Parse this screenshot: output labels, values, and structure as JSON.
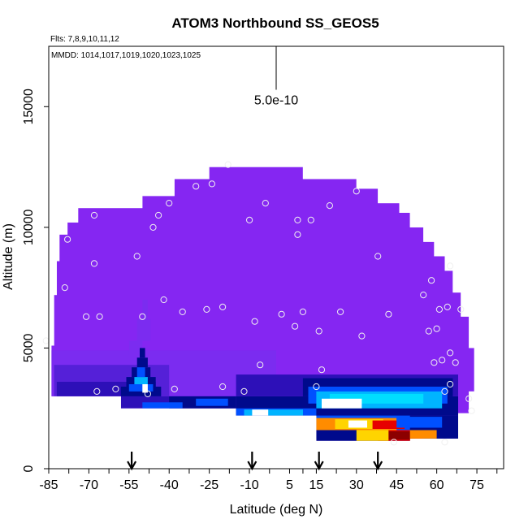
{
  "chart_data": {
    "type": "heatmap",
    "title": "ATOM3 Northbound SS_GEOS5",
    "flights_label": "Flts: 7,8,9,10,11,12",
    "dates_label": "MMDD: 1014,1017,1019,1020,1023,1025",
    "xlabel": "Latitude (deg N)",
    "ylabel": "Altitude (m)",
    "xlim": [
      -85,
      85
    ],
    "ylim": [
      0,
      17500
    ],
    "x_ticks": [
      -85,
      -70,
      -55,
      -40,
      -25,
      -10,
      5,
      15,
      30,
      45,
      60,
      75
    ],
    "y_ticks": [
      0,
      5000,
      10000,
      15000
    ],
    "grid": false,
    "scale_bar_label": "5.0e-10",
    "scale_bar": {
      "x": 0,
      "y_top": 17500,
      "y_bottom": 15700
    },
    "arrows_latitude": [
      -54,
      -9,
      16,
      38
    ],
    "colors": {
      "background_fill": "#8526f2",
      "low_1": "#7b2cf0",
      "low_2": "#5520d8",
      "low_3": "#2d10b8",
      "navy": "#000a8c",
      "blue": "#0050ff",
      "sky": "#00b4ff",
      "cyan": "#00dcff",
      "white": "#ffffff",
      "yellow": "#ffd400",
      "orange": "#ff8c00",
      "red": "#e60000",
      "darkred": "#8c0000"
    },
    "outline": [
      [
        -84,
        3000
      ],
      [
        -84,
        5100
      ],
      [
        -83,
        5100
      ],
      [
        -83,
        7200
      ],
      [
        -82,
        7200
      ],
      [
        -82,
        8600
      ],
      [
        -81,
        8600
      ],
      [
        -81,
        9700
      ],
      [
        -78,
        9700
      ],
      [
        -78,
        10200
      ],
      [
        -74,
        10200
      ],
      [
        -74,
        10800
      ],
      [
        -50,
        10800
      ],
      [
        -50,
        11300
      ],
      [
        -38,
        11300
      ],
      [
        -38,
        12000
      ],
      [
        -25,
        12000
      ],
      [
        -25,
        12500
      ],
      [
        10,
        12500
      ],
      [
        10,
        12000
      ],
      [
        30,
        12000
      ],
      [
        30,
        11600
      ],
      [
        38,
        11600
      ],
      [
        38,
        11000
      ],
      [
        46,
        11000
      ],
      [
        46,
        10600
      ],
      [
        50,
        10600
      ],
      [
        50,
        10000
      ],
      [
        55,
        10000
      ],
      [
        55,
        9400
      ],
      [
        59,
        9400
      ],
      [
        59,
        8800
      ],
      [
        63,
        8800
      ],
      [
        63,
        8200
      ],
      [
        66,
        8200
      ],
      [
        66,
        7300
      ],
      [
        69,
        7300
      ],
      [
        69,
        6300
      ],
      [
        72,
        6300
      ],
      [
        72,
        5000
      ],
      [
        74,
        5000
      ],
      [
        74,
        3200
      ],
      [
        72,
        3200
      ],
      [
        72,
        2300
      ],
      [
        68,
        2300
      ],
      [
        68,
        1250
      ],
      [
        50,
        1250
      ],
      [
        50,
        1150
      ],
      [
        15,
        1150
      ],
      [
        15,
        2200
      ],
      [
        -15,
        2200
      ],
      [
        -15,
        2500
      ],
      [
        -58,
        2500
      ],
      [
        -58,
        3000
      ]
    ],
    "patches": [
      {
        "x": [
          -84,
          0
        ],
        "y": [
          3000,
          4900
        ],
        "color": "low_1"
      },
      {
        "x": [
          -83,
          -40
        ],
        "y": [
          3000,
          4300
        ],
        "color": "low_2"
      },
      {
        "x": [
          -82,
          -45
        ],
        "y": [
          3000,
          3600
        ],
        "color": "low_3"
      },
      {
        "x": [
          -15,
          68
        ],
        "y": [
          3000,
          3900
        ],
        "color": "low_3"
      },
      {
        "x": [
          -55,
          -50
        ],
        "y": [
          4700,
          5300
        ],
        "color": "low_1"
      },
      {
        "x": [
          -52,
          -47
        ],
        "y": [
          5300,
          6200
        ],
        "color": "low_1"
      },
      {
        "x": [
          -50,
          -48
        ],
        "y": [
          6200,
          7000
        ],
        "color": "low_1"
      },
      {
        "x": [
          -58,
          -43
        ],
        "y": [
          3000,
          3400
        ],
        "color": "navy"
      },
      {
        "x": [
          -56,
          -45
        ],
        "y": [
          3400,
          3800
        ],
        "color": "navy"
      },
      {
        "x": [
          -54,
          -47
        ],
        "y": [
          3800,
          4200
        ],
        "color": "navy"
      },
      {
        "x": [
          -52,
          -48
        ],
        "y": [
          4200,
          4600
        ],
        "color": "navy"
      },
      {
        "x": [
          -51,
          -49
        ],
        "y": [
          4600,
          5000
        ],
        "color": "navy"
      },
      {
        "x": [
          -55,
          -46
        ],
        "y": [
          3200,
          3500
        ],
        "color": "blue"
      },
      {
        "x": [
          -53,
          -48
        ],
        "y": [
          3500,
          3800
        ],
        "color": "sky"
      },
      {
        "x": [
          -52,
          -49
        ],
        "y": [
          3800,
          4200
        ],
        "color": "blue"
      },
      {
        "x": [
          -50,
          -48
        ],
        "y": [
          3150,
          3500
        ],
        "color": "white"
      },
      {
        "x": [
          -58,
          -15
        ],
        "y": [
          2500,
          3000
        ],
        "color": "low_3"
      },
      {
        "x": [
          -40,
          -15
        ],
        "y": [
          2500,
          3000
        ],
        "color": "navy"
      },
      {
        "x": [
          -50,
          -35
        ],
        "y": [
          2500,
          2750
        ],
        "color": "blue"
      },
      {
        "x": [
          -30,
          -18
        ],
        "y": [
          2600,
          2900
        ],
        "color": "blue"
      },
      {
        "x": [
          -15,
          68
        ],
        "y": [
          2200,
          3000
        ],
        "color": "navy"
      },
      {
        "x": [
          -15,
          15
        ],
        "y": [
          2200,
          2500
        ],
        "color": "blue"
      },
      {
        "x": [
          -12,
          10
        ],
        "y": [
          2200,
          2450
        ],
        "color": "sky"
      },
      {
        "x": [
          -9,
          -3
        ],
        "y": [
          2200,
          2450
        ],
        "color": "white"
      },
      {
        "x": [
          10,
          66
        ],
        "y": [
          3000,
          3750
        ],
        "color": "navy"
      },
      {
        "x": [
          12,
          64
        ],
        "y": [
          2700,
          3400
        ],
        "color": "blue"
      },
      {
        "x": [
          15,
          62
        ],
        "y": [
          2500,
          3200
        ],
        "color": "sky"
      },
      {
        "x": [
          20,
          55
        ],
        "y": [
          2700,
          3100
        ],
        "color": "cyan"
      },
      {
        "x": [
          17,
          32
        ],
        "y": [
          2500,
          2900
        ],
        "color": "white"
      },
      {
        "x": [
          15,
          68
        ],
        "y": [
          1250,
          2200
        ],
        "color": "navy"
      },
      {
        "x": [
          15,
          50
        ],
        "y": [
          1600,
          2200
        ],
        "color": "blue"
      },
      {
        "x": [
          15,
          45
        ],
        "y": [
          1600,
          2100
        ],
        "color": "orange"
      },
      {
        "x": [
          22,
          40
        ],
        "y": [
          1650,
          2050
        ],
        "color": "yellow"
      },
      {
        "x": [
          27,
          34
        ],
        "y": [
          1700,
          2000
        ],
        "color": "white"
      },
      {
        "x": [
          36,
          48
        ],
        "y": [
          1650,
          2000
        ],
        "color": "red"
      },
      {
        "x": [
          45,
          62
        ],
        "y": [
          1700,
          2150
        ],
        "color": "blue"
      },
      {
        "x": [
          15,
          68
        ],
        "y": [
          1150,
          1600
        ],
        "color": "navy"
      },
      {
        "x": [
          38,
          55
        ],
        "y": [
          1150,
          1600
        ],
        "color": "red"
      },
      {
        "x": [
          42,
          52
        ],
        "y": [
          1200,
          1550
        ],
        "color": "darkred"
      },
      {
        "x": [
          50,
          60
        ],
        "y": [
          1150,
          1600
        ],
        "color": "orange"
      },
      {
        "x": [
          30,
          42
        ],
        "y": [
          1150,
          1600
        ],
        "color": "yellow"
      }
    ],
    "points": [
      [
        -86,
        5300
      ],
      [
        -79,
        7500
      ],
      [
        -78,
        9500
      ],
      [
        -71,
        6300
      ],
      [
        -68,
        10500
      ],
      [
        -68,
        8500
      ],
      [
        -66,
        6300
      ],
      [
        -60,
        3300
      ],
      [
        -52,
        8800
      ],
      [
        -50,
        6300
      ],
      [
        -48,
        3100
      ],
      [
        -46,
        10000
      ],
      [
        -44,
        10500
      ],
      [
        -42,
        7000
      ],
      [
        -40,
        11000
      ],
      [
        -38,
        3300
      ],
      [
        -35,
        6500
      ],
      [
        -30,
        11700
      ],
      [
        -26,
        6600
      ],
      [
        -24,
        11800
      ],
      [
        -20,
        6700
      ],
      [
        -20,
        3400
      ],
      [
        -12,
        3200
      ],
      [
        -10,
        10300
      ],
      [
        -8,
        6100
      ],
      [
        -6,
        4300
      ],
      [
        -4,
        11000
      ],
      [
        2,
        6400
      ],
      [
        7,
        5900
      ],
      [
        8,
        10300
      ],
      [
        8,
        9700
      ],
      [
        10,
        6500
      ],
      [
        13,
        10300
      ],
      [
        15,
        3400
      ],
      [
        16,
        5700
      ],
      [
        17,
        4100
      ],
      [
        20,
        10900
      ],
      [
        24,
        6500
      ],
      [
        30,
        11500
      ],
      [
        32,
        5500
      ],
      [
        38,
        8800
      ],
      [
        42,
        6400
      ],
      [
        44,
        1100
      ],
      [
        55,
        7200
      ],
      [
        57,
        5700
      ],
      [
        58,
        7800
      ],
      [
        59,
        4400
      ],
      [
        60,
        5800
      ],
      [
        61,
        6600
      ],
      [
        62,
        4500
      ],
      [
        63,
        3200
      ],
      [
        64,
        6700
      ],
      [
        65,
        8400
      ],
      [
        65,
        4800
      ],
      [
        65,
        3500
      ],
      [
        67,
        4400
      ],
      [
        69,
        6600
      ],
      [
        72,
        2900
      ],
      [
        73,
        2400
      ],
      [
        63,
        1100
      ],
      [
        -67,
        3200
      ],
      [
        -18,
        12600
      ]
    ]
  }
}
